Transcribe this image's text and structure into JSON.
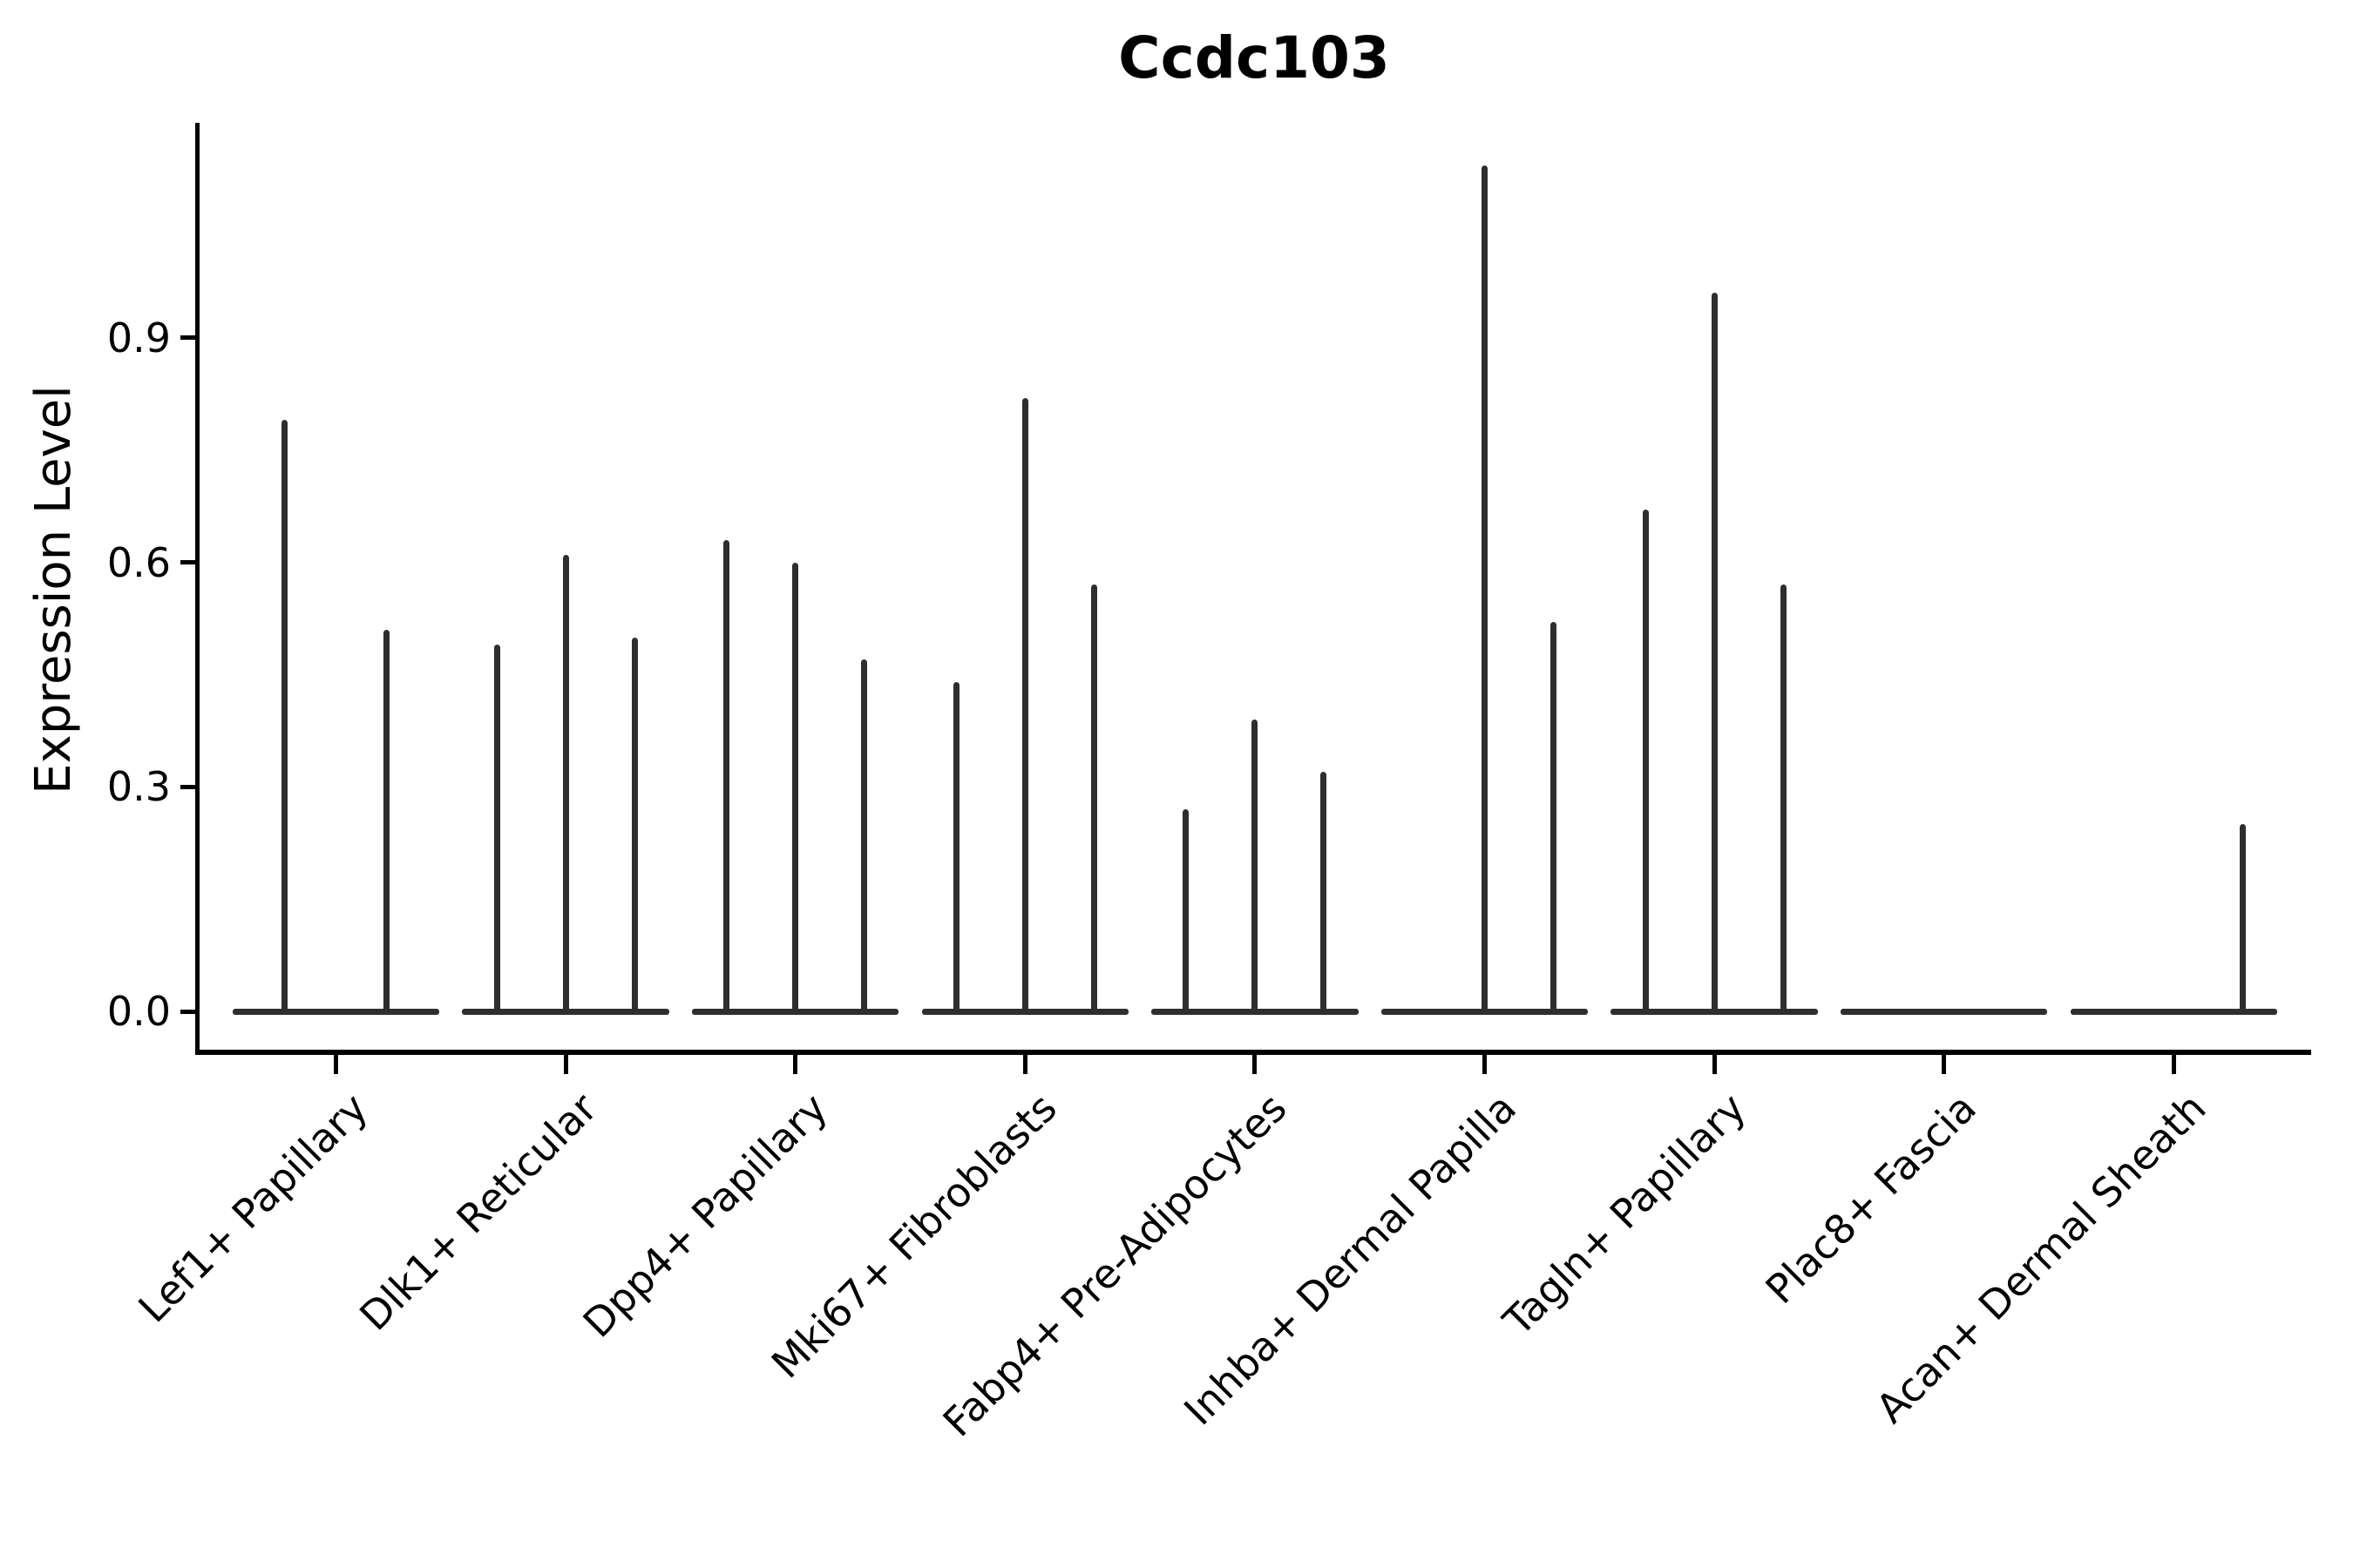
{
  "title": "Ccdc103",
  "y_axis": {
    "label": "Expression Level",
    "tick_labels": [
      "0.0",
      "0.3",
      "0.6",
      "0.9"
    ]
  },
  "x_axis": {
    "label": "",
    "tick_label_rotation_deg": 45
  },
  "chart_data": {
    "type": "violin",
    "title": "Ccdc103",
    "xlabel": "",
    "ylabel": "Expression Level",
    "ylim": [
      0,
      1.19
    ],
    "yticks": [
      0.0,
      0.3,
      0.6,
      0.9
    ],
    "grid": false,
    "legend": "none",
    "style": {
      "violin_color": "#2e2e2e",
      "axis_color": "#000000",
      "text_color": "#000000",
      "background": "#ffffff"
    },
    "group_base_width": 0.9,
    "categories": [
      "Lef1+ Papillary",
      "Dlk1+ Reticular",
      "Dpp4+ Papillary",
      "Mki67+ Fibroblasts",
      "Fabp4+ Pre-Adipocytes",
      "Inhba+ Dermal Papilla",
      "Tagln+ Papillary",
      "Plac8+ Fascia",
      "Acan+ Dermal Sheath"
    ],
    "violins": [
      {
        "category": "Lef1+ Papillary",
        "points": [
          {
            "offset": -0.225,
            "peak": 0.79
          },
          {
            "offset": 0.22,
            "peak": 0.51
          }
        ]
      },
      {
        "category": "Dlk1+ Reticular",
        "points": [
          {
            "offset": -0.3,
            "peak": 0.49
          },
          {
            "offset": 0,
            "peak": 0.61
          },
          {
            "offset": 0.3,
            "peak": 0.5
          }
        ]
      },
      {
        "category": "Dpp4+ Papillary",
        "points": [
          {
            "offset": -0.3,
            "peak": 0.63
          },
          {
            "offset": 0,
            "peak": 0.6
          },
          {
            "offset": 0.3,
            "peak": 0.47
          }
        ]
      },
      {
        "category": "Mki67+ Fibroblasts",
        "points": [
          {
            "offset": -0.3,
            "peak": 0.44
          },
          {
            "offset": 0,
            "peak": 0.82
          },
          {
            "offset": 0.3,
            "peak": 0.57
          }
        ]
      },
      {
        "category": "Fabp4+ Pre-Adipocytes",
        "points": [
          {
            "offset": -0.3,
            "peak": 0.27
          },
          {
            "offset": 0,
            "peak": 0.39
          },
          {
            "offset": 0.3,
            "peak": 0.32
          }
        ]
      },
      {
        "category": "Inhba+ Dermal Papilla",
        "points": [
          {
            "offset": -0.3,
            "peak": 0.0
          },
          {
            "offset": 0,
            "peak": 1.13
          },
          {
            "offset": 0.3,
            "peak": 0.52
          }
        ]
      },
      {
        "category": "Tagln+ Papillary",
        "points": [
          {
            "offset": -0.3,
            "peak": 0.67
          },
          {
            "offset": 0,
            "peak": 0.96
          },
          {
            "offset": 0.3,
            "peak": 0.57
          }
        ]
      },
      {
        "category": "Plac8+ Fascia",
        "points": [
          {
            "offset": -0.3,
            "peak": 0.0
          },
          {
            "offset": 0,
            "peak": 0.0
          },
          {
            "offset": 0.3,
            "peak": 0.0
          }
        ]
      },
      {
        "category": "Acan+ Dermal Sheath",
        "points": [
          {
            "offset": -0.3,
            "peak": 0.0
          },
          {
            "offset": 0,
            "peak": 0.0
          },
          {
            "offset": 0.3,
            "peak": 0.25
          }
        ]
      }
    ]
  }
}
